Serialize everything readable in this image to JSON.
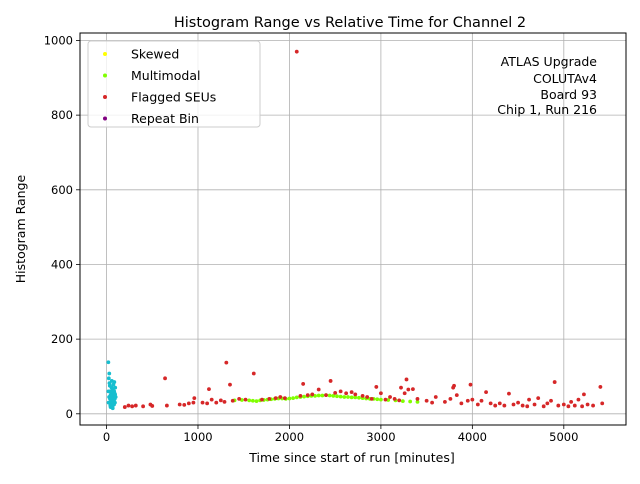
{
  "chart_data": {
    "type": "scatter",
    "title": "Histogram Range vs Relative Time for Channel 2",
    "xlabel": "Time since start of run [minutes]",
    "ylabel": "Histogram Range",
    "xlim": [
      -290,
      5680
    ],
    "ylim": [
      -30,
      1020
    ],
    "xticks": [
      0,
      1000,
      2000,
      3000,
      4000,
      5000
    ],
    "yticks": [
      0,
      200,
      400,
      600,
      800,
      1000
    ],
    "grid": true,
    "legend_position": "upper-left",
    "annotation": [
      "ATLAS Upgrade",
      "COLUTAv4",
      "Board 93",
      "Chip 1, Run 216"
    ],
    "series": [
      {
        "name": "Skewed",
        "color": "#ffff00",
        "points": []
      },
      {
        "name": "Multimodal",
        "color": "#80ff00",
        "points": [
          [
            1400,
            36
          ],
          [
            1480,
            37
          ],
          [
            1560,
            36
          ],
          [
            1600,
            35
          ],
          [
            1640,
            34
          ],
          [
            1680,
            36
          ],
          [
            1720,
            37
          ],
          [
            1760,
            38
          ],
          [
            1800,
            39
          ],
          [
            1840,
            40
          ],
          [
            1880,
            41
          ],
          [
            1920,
            41
          ],
          [
            1960,
            40
          ],
          [
            2000,
            41
          ],
          [
            2040,
            42
          ],
          [
            2080,
            44
          ],
          [
            2120,
            45
          ],
          [
            2160,
            46
          ],
          [
            2200,
            47
          ],
          [
            2240,
            48
          ],
          [
            2280,
            48
          ],
          [
            2320,
            49
          ],
          [
            2360,
            49
          ],
          [
            2400,
            50
          ],
          [
            2440,
            49
          ],
          [
            2480,
            48
          ],
          [
            2520,
            47
          ],
          [
            2560,
            46
          ],
          [
            2600,
            45
          ],
          [
            2640,
            45
          ],
          [
            2680,
            44
          ],
          [
            2720,
            44
          ],
          [
            2760,
            43
          ],
          [
            2800,
            42
          ],
          [
            2840,
            41
          ],
          [
            2880,
            40
          ],
          [
            2920,
            40
          ],
          [
            2960,
            39
          ],
          [
            3000,
            38
          ],
          [
            3080,
            37
          ],
          [
            3160,
            36
          ],
          [
            3240,
            34
          ],
          [
            3320,
            33
          ],
          [
            3400,
            32
          ]
        ]
      },
      {
        "name": "Flagged SEUs",
        "color": "#d62728",
        "points": [
          [
            200,
            18
          ],
          [
            240,
            22
          ],
          [
            280,
            20
          ],
          [
            320,
            22
          ],
          [
            400,
            20
          ],
          [
            480,
            25
          ],
          [
            500,
            21
          ],
          [
            640,
            95
          ],
          [
            660,
            22
          ],
          [
            800,
            25
          ],
          [
            850,
            24
          ],
          [
            900,
            28
          ],
          [
            950,
            30
          ],
          [
            960,
            42
          ],
          [
            1050,
            30
          ],
          [
            1100,
            28
          ],
          [
            1120,
            66
          ],
          [
            1150,
            38
          ],
          [
            1200,
            30
          ],
          [
            1250,
            36
          ],
          [
            1290,
            32
          ],
          [
            1310,
            137
          ],
          [
            1350,
            78
          ],
          [
            1380,
            35
          ],
          [
            1450,
            40
          ],
          [
            1520,
            38
          ],
          [
            1610,
            108
          ],
          [
            1700,
            38
          ],
          [
            1780,
            40
          ],
          [
            1850,
            42
          ],
          [
            1900,
            45
          ],
          [
            1950,
            42
          ],
          [
            2080,
            970
          ],
          [
            2120,
            48
          ],
          [
            2150,
            80
          ],
          [
            2200,
            50
          ],
          [
            2250,
            52
          ],
          [
            2320,
            65
          ],
          [
            2400,
            50
          ],
          [
            2450,
            88
          ],
          [
            2500,
            56
          ],
          [
            2560,
            60
          ],
          [
            2620,
            55
          ],
          [
            2680,
            58
          ],
          [
            2720,
            52
          ],
          [
            2800,
            48
          ],
          [
            2850,
            45
          ],
          [
            2900,
            40
          ],
          [
            2950,
            72
          ],
          [
            3000,
            55
          ],
          [
            3050,
            38
          ],
          [
            3100,
            45
          ],
          [
            3150,
            40
          ],
          [
            3200,
            36
          ],
          [
            3220,
            70
          ],
          [
            3260,
            55
          ],
          [
            3280,
            92
          ],
          [
            3300,
            65
          ],
          [
            3350,
            66
          ],
          [
            3400,
            40
          ],
          [
            3500,
            35
          ],
          [
            3560,
            30
          ],
          [
            3600,
            45
          ],
          [
            3700,
            32
          ],
          [
            3760,
            40
          ],
          [
            3790,
            70
          ],
          [
            3800,
            75
          ],
          [
            3830,
            50
          ],
          [
            3880,
            28
          ],
          [
            3950,
            35
          ],
          [
            3980,
            78
          ],
          [
            4000,
            38
          ],
          [
            4060,
            25
          ],
          [
            4100,
            35
          ],
          [
            4150,
            58
          ],
          [
            4200,
            28
          ],
          [
            4250,
            22
          ],
          [
            4300,
            28
          ],
          [
            4350,
            22
          ],
          [
            4400,
            54
          ],
          [
            4450,
            25
          ],
          [
            4500,
            30
          ],
          [
            4550,
            22
          ],
          [
            4600,
            20
          ],
          [
            4620,
            38
          ],
          [
            4680,
            25
          ],
          [
            4720,
            42
          ],
          [
            4780,
            20
          ],
          [
            4820,
            28
          ],
          [
            4860,
            35
          ],
          [
            4900,
            85
          ],
          [
            4940,
            22
          ],
          [
            5000,
            25
          ],
          [
            5050,
            20
          ],
          [
            5080,
            32
          ],
          [
            5120,
            22
          ],
          [
            5160,
            38
          ],
          [
            5200,
            20
          ],
          [
            5220,
            52
          ],
          [
            5260,
            25
          ],
          [
            5320,
            22
          ],
          [
            5400,
            72
          ],
          [
            5420,
            28
          ]
        ]
      },
      {
        "name": "Repeat Bin",
        "color": "#800080",
        "points": []
      },
      {
        "name": "",
        "color": "#17becf",
        "points": [
          [
            20,
            138
          ],
          [
            25,
            95
          ],
          [
            30,
            108
          ],
          [
            32,
            82
          ],
          [
            35,
            60
          ],
          [
            38,
            40
          ],
          [
            40,
            28
          ],
          [
            42,
            22
          ],
          [
            45,
            18
          ],
          [
            48,
            25
          ],
          [
            50,
            35
          ],
          [
            52,
            55
          ],
          [
            55,
            70
          ],
          [
            58,
            88
          ],
          [
            60,
            48
          ],
          [
            62,
            30
          ],
          [
            65,
            20
          ],
          [
            68,
            15
          ],
          [
            70,
            42
          ],
          [
            72,
            62
          ],
          [
            75,
            78
          ],
          [
            78,
            50
          ],
          [
            80,
            35
          ],
          [
            82,
            25
          ],
          [
            85,
            85
          ],
          [
            88,
            55
          ],
          [
            90,
            40
          ],
          [
            92,
            30
          ],
          [
            95,
            70
          ],
          [
            100,
            45
          ],
          [
            20,
            60
          ],
          [
            22,
            30
          ],
          [
            28,
            45
          ],
          [
            36,
            75
          ],
          [
            44,
            50
          ],
          [
            54,
            42
          ],
          [
            64,
            66
          ],
          [
            74,
            25
          ],
          [
            84,
            60
          ],
          [
            94,
            52
          ]
        ]
      }
    ]
  }
}
